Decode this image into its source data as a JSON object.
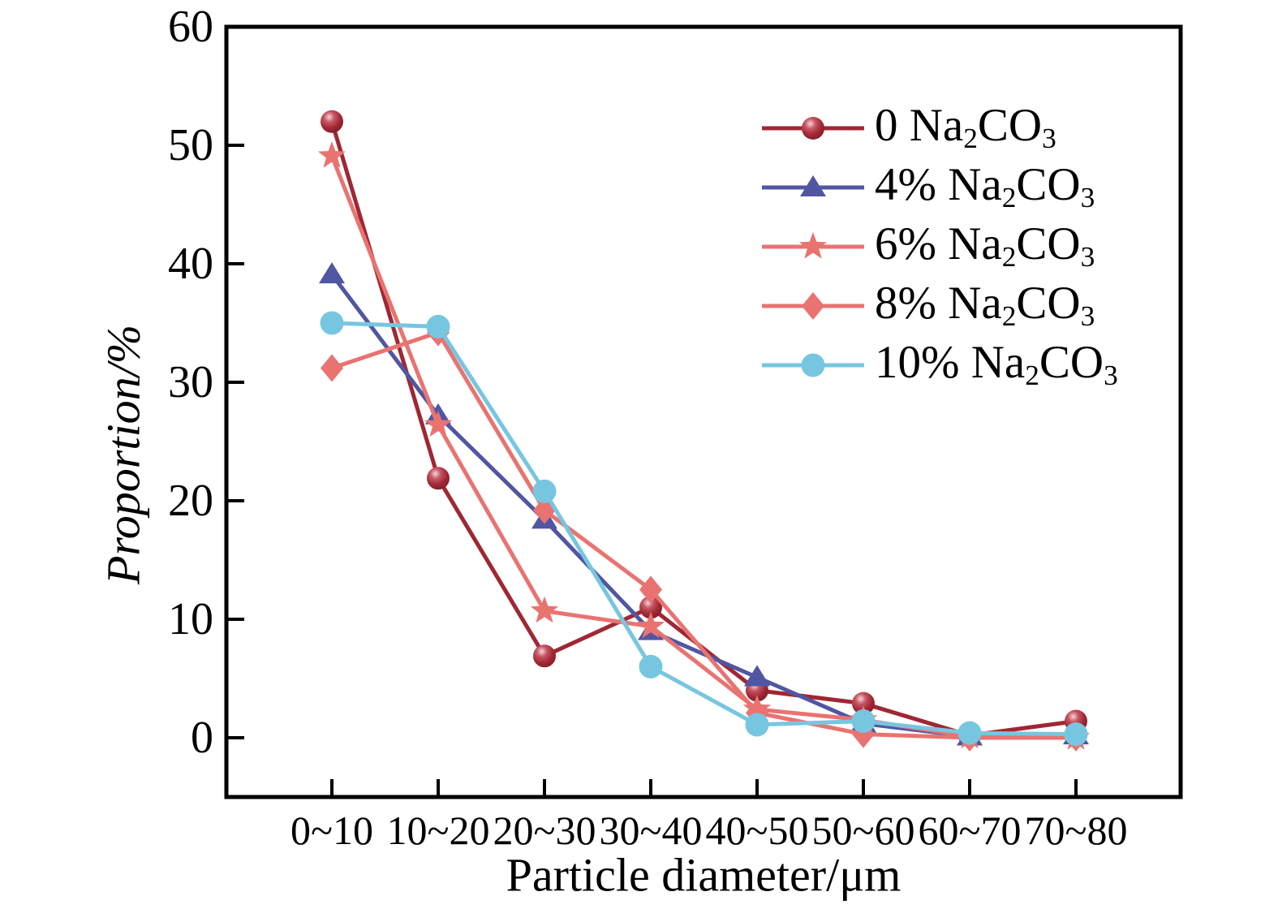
{
  "chart_data": {
    "type": "line",
    "title": "",
    "xlabel": "Particle diameter/μm",
    "ylabel": "Proportion/%",
    "categories": [
      "0~10",
      "10~20",
      "20~30",
      "30~40",
      "40~50",
      "50~60",
      "60~70",
      "70~80"
    ],
    "yticks": [
      0,
      10,
      20,
      30,
      40,
      50,
      60
    ],
    "ylim": [
      -5,
      60
    ],
    "grid": false,
    "legend_position": "top-right-inside",
    "axis_color": "#000000",
    "background_color": "#ffffff",
    "series": [
      {
        "name": "0 Na2CO3",
        "marker": "sphere",
        "color": "#9F2733",
        "label_parts": [
          {
            "t": "0 Na"
          },
          {
            "t": "2",
            "sub": true
          },
          {
            "t": "CO"
          },
          {
            "t": "3",
            "sub": true
          }
        ],
        "values": [
          52.0,
          21.9,
          6.9,
          11.0,
          4.0,
          2.9,
          0.2,
          1.4
        ]
      },
      {
        "name": "4% Na2CO3",
        "marker": "triangle",
        "color": "#5056A2",
        "label_parts": [
          {
            "t": "4% Na"
          },
          {
            "t": "2",
            "sub": true
          },
          {
            "t": "CO"
          },
          {
            "t": "3",
            "sub": true
          }
        ],
        "values": [
          39.1,
          27.2,
          18.4,
          9.0,
          5.1,
          1.2,
          0.1,
          0.2
        ]
      },
      {
        "name": "6% Na2CO3",
        "marker": "star",
        "color": "#E97370",
        "label_parts": [
          {
            "t": "6% Na"
          },
          {
            "t": "2",
            "sub": true
          },
          {
            "t": "CO"
          },
          {
            "t": "3",
            "sub": true
          }
        ],
        "values": [
          49.1,
          26.4,
          10.7,
          9.4,
          2.4,
          1.5,
          0.1,
          0.0
        ]
      },
      {
        "name": "8% Na2CO3",
        "marker": "diamond",
        "color": "#E97370",
        "label_parts": [
          {
            "t": "8% Na"
          },
          {
            "t": "2",
            "sub": true
          },
          {
            "t": "CO"
          },
          {
            "t": "3",
            "sub": true
          }
        ],
        "values": [
          31.2,
          34.2,
          19.2,
          12.5,
          2.1,
          0.3,
          0.0,
          0.0
        ]
      },
      {
        "name": "10% Na2CO3",
        "marker": "circle",
        "color": "#77C6E0",
        "label_parts": [
          {
            "t": "10% Na"
          },
          {
            "t": "2",
            "sub": true
          },
          {
            "t": "CO"
          },
          {
            "t": "3",
            "sub": true
          }
        ],
        "values": [
          35.0,
          34.7,
          20.8,
          6.0,
          1.1,
          1.4,
          0.4,
          0.3
        ]
      }
    ]
  }
}
